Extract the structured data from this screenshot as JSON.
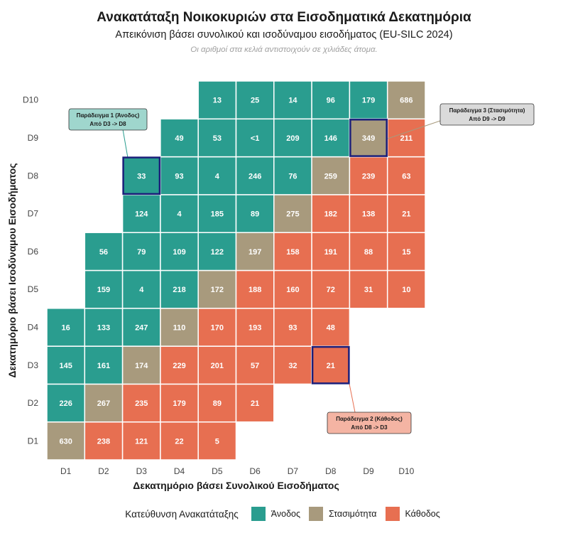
{
  "title": "Ανακατάταξη Νοικοκυριών στα Εισοδηματικά Δεκατημόρια",
  "subtitle": "Απεικόνιση βάσει συνολικού και ισοδύναμου εισοδήματος (EU-SILC 2024)",
  "caption": "Οι αριθμοί στα κελιά αντιστοιχούν σε χιλιάδες άτομα.",
  "colors": {
    "up": "#2a9d8f",
    "stable": "#a89a7d",
    "down": "#e76f51",
    "highlight": "#1b1f7a"
  },
  "legend": {
    "title": "Κατεύθυνση Ανακατάταξης",
    "items": [
      {
        "key": "up",
        "label": "Άνοδος"
      },
      {
        "key": "stable",
        "label": "Στασιμότητα"
      },
      {
        "key": "down",
        "label": "Κάθοδος"
      }
    ]
  },
  "chart_data": {
    "type": "heatmap",
    "xlabel": "Δεκατημόριο βάσει Συνολικού Εισοδήματος",
    "ylabel": "Δεκατημόριο βάσει Ισοδύναμου Εισοδήματος",
    "x_categories": [
      "D1",
      "D2",
      "D3",
      "D4",
      "D5",
      "D6",
      "D7",
      "D8",
      "D9",
      "D10"
    ],
    "y_categories": [
      "D1",
      "D2",
      "D3",
      "D4",
      "D5",
      "D6",
      "D7",
      "D8",
      "D9",
      "D10"
    ],
    "cells": [
      {
        "x": "D1",
        "y": "D1",
        "value": "630"
      },
      {
        "x": "D2",
        "y": "D1",
        "value": "238"
      },
      {
        "x": "D3",
        "y": "D1",
        "value": "121"
      },
      {
        "x": "D4",
        "y": "D1",
        "value": "22"
      },
      {
        "x": "D5",
        "y": "D1",
        "value": "5"
      },
      {
        "x": "D1",
        "y": "D2",
        "value": "226"
      },
      {
        "x": "D2",
        "y": "D2",
        "value": "267"
      },
      {
        "x": "D3",
        "y": "D2",
        "value": "235"
      },
      {
        "x": "D4",
        "y": "D2",
        "value": "179"
      },
      {
        "x": "D5",
        "y": "D2",
        "value": "89"
      },
      {
        "x": "D6",
        "y": "D2",
        "value": "21"
      },
      {
        "x": "D1",
        "y": "D3",
        "value": "145"
      },
      {
        "x": "D2",
        "y": "D3",
        "value": "161"
      },
      {
        "x": "D3",
        "y": "D3",
        "value": "174"
      },
      {
        "x": "D4",
        "y": "D3",
        "value": "229"
      },
      {
        "x": "D5",
        "y": "D3",
        "value": "201"
      },
      {
        "x": "D6",
        "y": "D3",
        "value": "57"
      },
      {
        "x": "D7",
        "y": "D3",
        "value": "32"
      },
      {
        "x": "D8",
        "y": "D3",
        "value": "21"
      },
      {
        "x": "D1",
        "y": "D4",
        "value": "16"
      },
      {
        "x": "D2",
        "y": "D4",
        "value": "133"
      },
      {
        "x": "D3",
        "y": "D4",
        "value": "247"
      },
      {
        "x": "D4",
        "y": "D4",
        "value": "110"
      },
      {
        "x": "D5",
        "y": "D4",
        "value": "170"
      },
      {
        "x": "D6",
        "y": "D4",
        "value": "193"
      },
      {
        "x": "D7",
        "y": "D4",
        "value": "93"
      },
      {
        "x": "D8",
        "y": "D4",
        "value": "48"
      },
      {
        "x": "D2",
        "y": "D5",
        "value": "159"
      },
      {
        "x": "D3",
        "y": "D5",
        "value": "4"
      },
      {
        "x": "D4",
        "y": "D5",
        "value": "218"
      },
      {
        "x": "D5",
        "y": "D5",
        "value": "172"
      },
      {
        "x": "D6",
        "y": "D5",
        "value": "188"
      },
      {
        "x": "D7",
        "y": "D5",
        "value": "160"
      },
      {
        "x": "D8",
        "y": "D5",
        "value": "72"
      },
      {
        "x": "D9",
        "y": "D5",
        "value": "31"
      },
      {
        "x": "D10",
        "y": "D5",
        "value": "10"
      },
      {
        "x": "D2",
        "y": "D6",
        "value": "56"
      },
      {
        "x": "D3",
        "y": "D6",
        "value": "79"
      },
      {
        "x": "D4",
        "y": "D6",
        "value": "109"
      },
      {
        "x": "D5",
        "y": "D6",
        "value": "122"
      },
      {
        "x": "D6",
        "y": "D6",
        "value": "197"
      },
      {
        "x": "D7",
        "y": "D6",
        "value": "158"
      },
      {
        "x": "D8",
        "y": "D6",
        "value": "191"
      },
      {
        "x": "D9",
        "y": "D6",
        "value": "88"
      },
      {
        "x": "D10",
        "y": "D6",
        "value": "15"
      },
      {
        "x": "D3",
        "y": "D7",
        "value": "124"
      },
      {
        "x": "D4",
        "y": "D7",
        "value": "4"
      },
      {
        "x": "D5",
        "y": "D7",
        "value": "185"
      },
      {
        "x": "D6",
        "y": "D7",
        "value": "89"
      },
      {
        "x": "D7",
        "y": "D7",
        "value": "275"
      },
      {
        "x": "D8",
        "y": "D7",
        "value": "182"
      },
      {
        "x": "D9",
        "y": "D7",
        "value": "138"
      },
      {
        "x": "D10",
        "y": "D7",
        "value": "21"
      },
      {
        "x": "D3",
        "y": "D8",
        "value": "33"
      },
      {
        "x": "D4",
        "y": "D8",
        "value": "93"
      },
      {
        "x": "D5",
        "y": "D8",
        "value": "4"
      },
      {
        "x": "D6",
        "y": "D8",
        "value": "246"
      },
      {
        "x": "D7",
        "y": "D8",
        "value": "76"
      },
      {
        "x": "D8",
        "y": "D8",
        "value": "259"
      },
      {
        "x": "D9",
        "y": "D8",
        "value": "239"
      },
      {
        "x": "D10",
        "y": "D8",
        "value": "63"
      },
      {
        "x": "D4",
        "y": "D9",
        "value": "49"
      },
      {
        "x": "D5",
        "y": "D9",
        "value": "53"
      },
      {
        "x": "D6",
        "y": "D9",
        "value": "<1"
      },
      {
        "x": "D7",
        "y": "D9",
        "value": "209"
      },
      {
        "x": "D8",
        "y": "D9",
        "value": "146"
      },
      {
        "x": "D9",
        "y": "D9",
        "value": "349"
      },
      {
        "x": "D10",
        "y": "D9",
        "value": "211"
      },
      {
        "x": "D5",
        "y": "D10",
        "value": "13"
      },
      {
        "x": "D6",
        "y": "D10",
        "value": "25"
      },
      {
        "x": "D7",
        "y": "D10",
        "value": "14"
      },
      {
        "x": "D8",
        "y": "D10",
        "value": "96"
      },
      {
        "x": "D9",
        "y": "D10",
        "value": "179"
      },
      {
        "x": "D10",
        "y": "D10",
        "value": "686"
      }
    ],
    "annotations": [
      {
        "x": "D3",
        "y": "D8",
        "label_line1": "Παράδειγμα 1 (Άνοδος)",
        "label_line2": "Από D3 -> D8",
        "category": "up"
      },
      {
        "x": "D8",
        "y": "D3",
        "label_line1": "Παράδειγμα 2 (Κάθοδος)",
        "label_line2": "Από D8 -> D3",
        "category": "down"
      },
      {
        "x": "D9",
        "y": "D9",
        "label_line1": "Παράδειγμα 3 (Στασιμότητα)",
        "label_line2": "Από D9 -> D9",
        "category": "stable"
      }
    ],
    "legend_position": "bottom"
  }
}
